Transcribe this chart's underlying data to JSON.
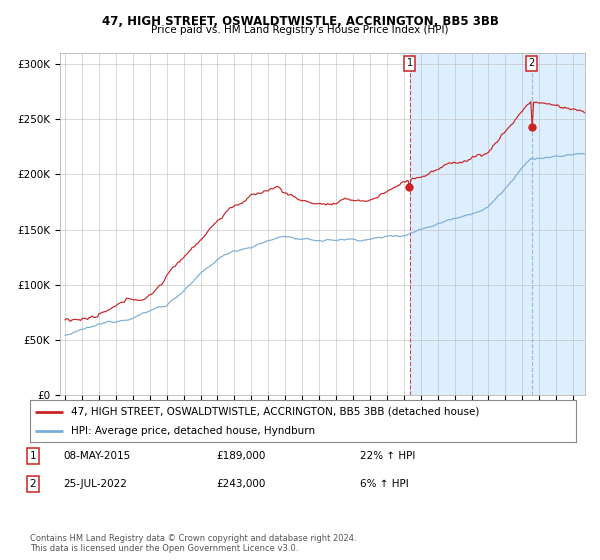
{
  "title1": "47, HIGH STREET, OSWALDTWISTLE, ACCRINGTON, BB5 3BB",
  "title2": "Price paid vs. HM Land Registry's House Price Index (HPI)",
  "ylabel_ticks": [
    "£0",
    "£50K",
    "£100K",
    "£150K",
    "£200K",
    "£250K",
    "£300K"
  ],
  "ytick_vals": [
    0,
    50000,
    100000,
    150000,
    200000,
    250000,
    300000
  ],
  "ylim": [
    0,
    310000
  ],
  "xlim_start": 1994.7,
  "xlim_end": 2025.7,
  "event1": {
    "date_num": 2015.35,
    "price": 189000,
    "label": "1"
  },
  "event2": {
    "date_num": 2022.56,
    "price": 243000,
    "label": "2"
  },
  "red_line_color": "#cc2222",
  "blue_line_color": "#7aaed6",
  "shading_color": "#ddeeff",
  "grid_color": "#bbbbbb",
  "bg_color": "#ffffff",
  "legend_line1": "47, HIGH STREET, OSWALDTWISTLE, ACCRINGTON, BB5 3BB (detached house)",
  "legend_line2": "HPI: Average price, detached house, Hyndburn",
  "annot1_date": "08-MAY-2015",
  "annot1_price": "£189,000",
  "annot1_hpi": "22% ↑ HPI",
  "annot2_date": "25-JUL-2022",
  "annot2_price": "£243,000",
  "annot2_hpi": "6% ↑ HPI",
  "footer": "Contains HM Land Registry data © Crown copyright and database right 2024.\nThis data is licensed under the Open Government Licence v3.0."
}
